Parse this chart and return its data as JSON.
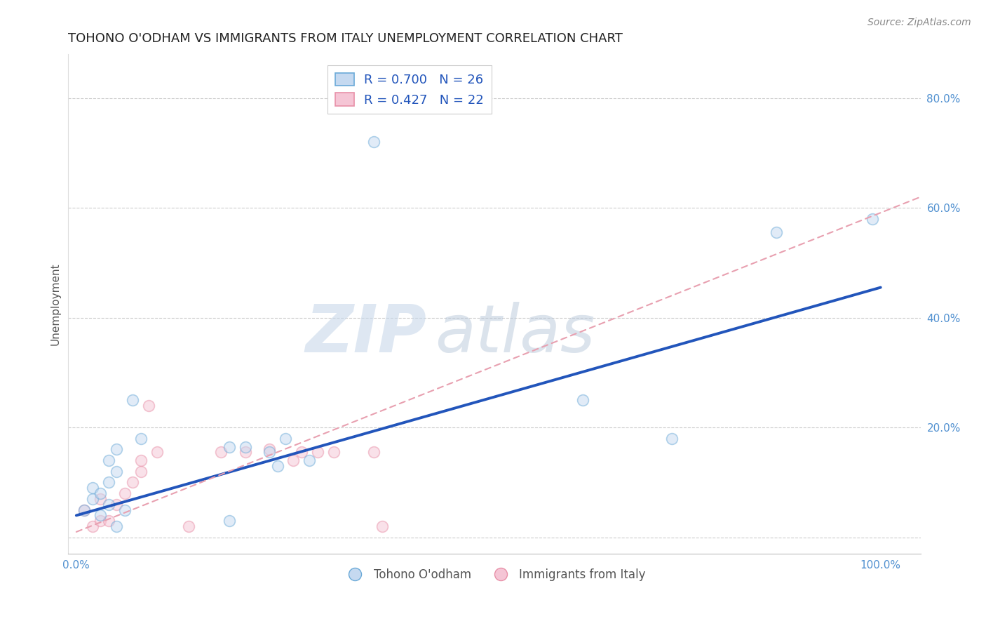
{
  "title": "TOHONO O'ODHAM VS IMMIGRANTS FROM ITALY UNEMPLOYMENT CORRELATION CHART",
  "source": "Source: ZipAtlas.com",
  "ylabel": "Unemployment",
  "ytick_values": [
    0.0,
    0.2,
    0.4,
    0.6,
    0.8
  ],
  "ytick_labels": [
    "",
    "20.0%",
    "40.0%",
    "60.0%",
    "80.0%"
  ],
  "xtick_values": [
    0.0,
    0.25,
    0.5,
    0.75,
    1.0
  ],
  "xtick_labels": [
    "0.0%",
    "",
    "",
    "",
    "100.0%"
  ],
  "xlim": [
    -0.01,
    1.05
  ],
  "ylim": [
    -0.03,
    0.88
  ],
  "series1_label": "Tohono O'odham",
  "series2_label": "Immigrants from Italy",
  "blue_scatter_x": [
    0.01,
    0.02,
    0.02,
    0.03,
    0.03,
    0.04,
    0.04,
    0.04,
    0.05,
    0.05,
    0.05,
    0.06,
    0.07,
    0.08,
    0.19,
    0.21,
    0.24,
    0.25,
    0.26,
    0.29,
    0.37,
    0.19,
    0.63,
    0.74,
    0.87,
    0.99
  ],
  "blue_scatter_y": [
    0.05,
    0.07,
    0.09,
    0.04,
    0.08,
    0.06,
    0.1,
    0.14,
    0.12,
    0.16,
    0.02,
    0.05,
    0.25,
    0.18,
    0.165,
    0.165,
    0.155,
    0.13,
    0.18,
    0.14,
    0.72,
    0.03,
    0.25,
    0.18,
    0.555,
    0.58
  ],
  "pink_scatter_x": [
    0.01,
    0.02,
    0.03,
    0.03,
    0.04,
    0.05,
    0.06,
    0.07,
    0.08,
    0.08,
    0.09,
    0.1,
    0.14,
    0.18,
    0.21,
    0.24,
    0.27,
    0.28,
    0.3,
    0.32,
    0.37,
    0.38
  ],
  "pink_scatter_y": [
    0.05,
    0.02,
    0.03,
    0.07,
    0.03,
    0.06,
    0.08,
    0.1,
    0.12,
    0.14,
    0.24,
    0.155,
    0.02,
    0.155,
    0.155,
    0.16,
    0.14,
    0.155,
    0.155,
    0.155,
    0.155,
    0.02
  ],
  "blue_line_x0": 0.0,
  "blue_line_x1": 1.0,
  "blue_line_y0": 0.04,
  "blue_line_y1": 0.455,
  "pink_line_x0": 0.0,
  "pink_line_x1": 1.05,
  "pink_line_y0": 0.01,
  "pink_line_y1": 0.62,
  "watermark_zip": "ZIP",
  "watermark_atlas": "atlas",
  "title_fontsize": 13,
  "axis_label_fontsize": 11,
  "tick_fontsize": 11,
  "scatter_size": 130,
  "scatter_alpha": 0.5,
  "blue_marker_face": "#c5d9f0",
  "blue_marker_edge": "#6baad8",
  "pink_marker_face": "#f5c5d5",
  "pink_marker_edge": "#e890a8",
  "line_blue_color": "#2255bb",
  "line_pink_color": "#e8a0b0",
  "grid_color": "#cccccc",
  "tick_color": "#5090d0",
  "ylabel_color": "#555555",
  "title_color": "#222222",
  "source_color": "#888888"
}
